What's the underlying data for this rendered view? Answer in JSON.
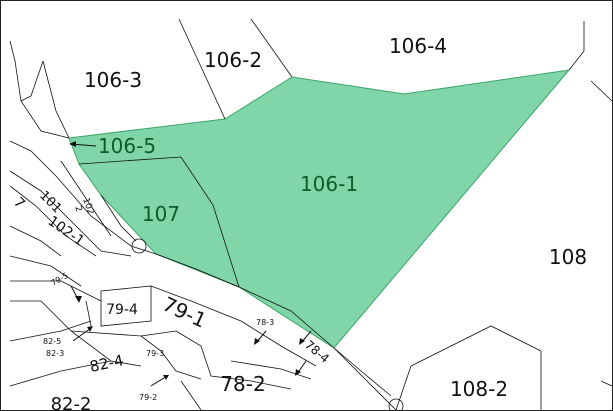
{
  "map": {
    "labels": {
      "p106_2": "106-2",
      "p106_3": "106-3",
      "p106_4": "106-4",
      "p106_5": "106-5",
      "p106_1": "106-1",
      "p107": "107",
      "p108": "108",
      "p108_2": "108-2",
      "p101": "101",
      "p7": "7",
      "p102_2a": "102",
      "p102_2b": "2",
      "p102_1": "102-1",
      "p79_5": "79-5",
      "p79_4": "79-4",
      "p79_1": "79-1",
      "p78_3": "78-3",
      "p78_4": "78-4",
      "p82_5": "82-5",
      "p82_3": "82-3",
      "p82_4": "82-4",
      "p79_3": "79-3",
      "p79_2": "79-2",
      "p78_2": "78-2",
      "p82_2": "82-2"
    },
    "highlight_color": "#80d6a8",
    "highlight_stroke": "#3aa56a",
    "line_color": "#111111"
  }
}
